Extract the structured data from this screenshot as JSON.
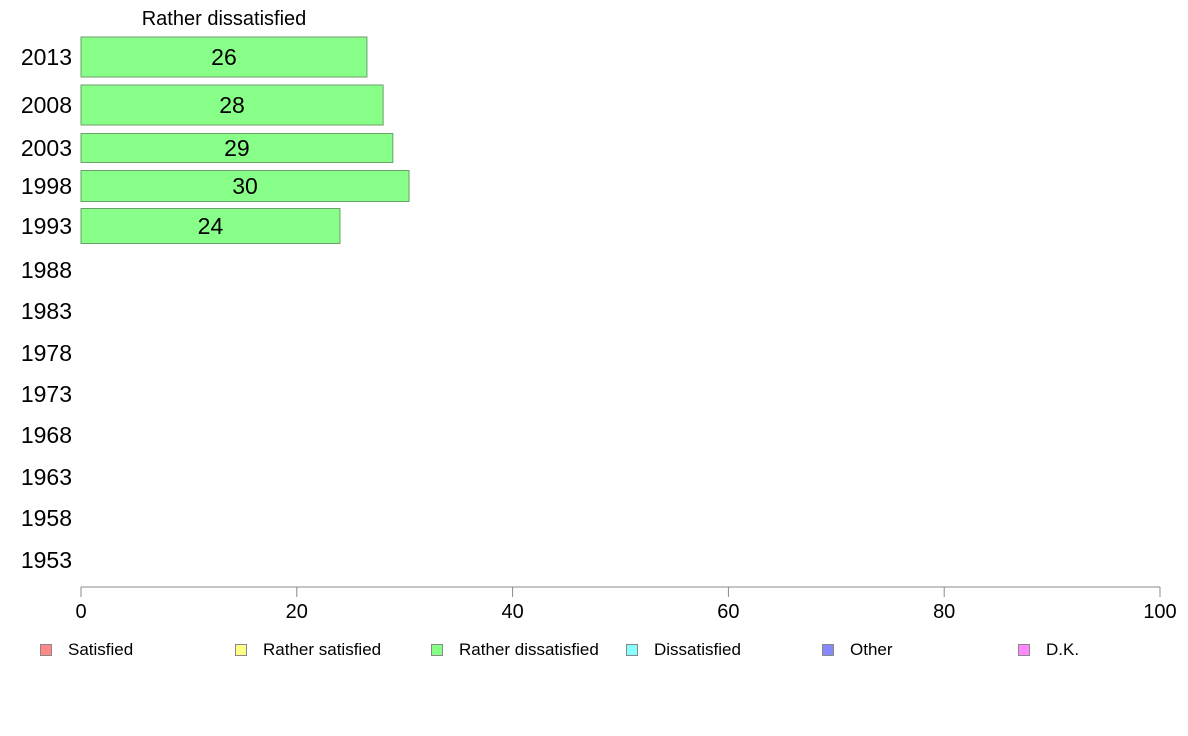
{
  "chart_data": {
    "type": "bar",
    "orientation": "horizontal",
    "title": "Rather dissatisfied",
    "categories": [
      "2013",
      "2008",
      "2003",
      "1998",
      "1993",
      "1988",
      "1983",
      "1978",
      "1973",
      "1968",
      "1963",
      "1958",
      "1953"
    ],
    "series": [
      {
        "name": "Rather dissatisfied",
        "color": "#88ff88",
        "values": [
          26.5,
          28,
          28.9,
          30.4,
          24,
          null,
          null,
          null,
          null,
          null,
          null,
          null,
          null
        ],
        "labels": [
          "26",
          "28",
          "29",
          "30",
          "24",
          "",
          "",
          "",
          "",
          "",
          "",
          "",
          ""
        ]
      }
    ],
    "xlim": [
      0,
      100
    ],
    "xticks": [
      "0",
      "20",
      "40",
      "60",
      "80",
      "100"
    ],
    "grid": false,
    "legend": {
      "position": "bottom",
      "entries": [
        {
          "label": "Satisfied",
          "color": "#ff8888"
        },
        {
          "label": "Rather satisfied",
          "color": "#ffff88"
        },
        {
          "label": "Rather dissatisfied",
          "color": "#88ff88"
        },
        {
          "label": "Dissatisfied",
          "color": "#88ffff"
        },
        {
          "label": "Other",
          "color": "#8888ff"
        },
        {
          "label": "D.K.",
          "color": "#ff88ff"
        }
      ]
    }
  }
}
